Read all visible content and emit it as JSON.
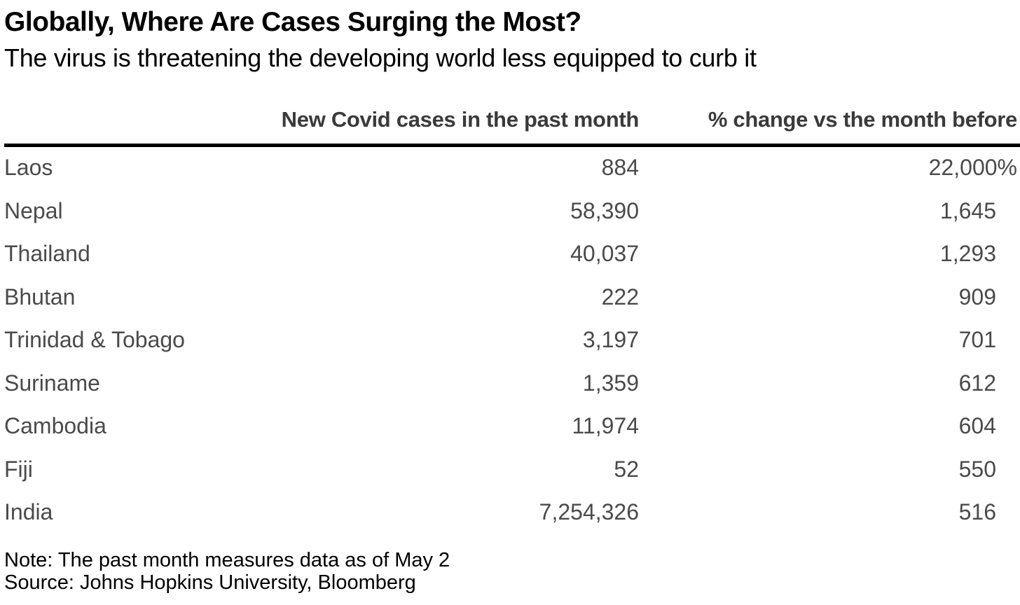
{
  "header": {
    "title": "Globally, Where Are Cases Surging the Most?",
    "subtitle": "The virus is threatening the developing world less equipped to curb it"
  },
  "footer": {
    "note": "Note: The past month measures data as of May 2",
    "source": "Source: Johns Hopkins University, Bloomberg"
  },
  "chart_data": {
    "type": "table",
    "title": "Globally, Where Are Cases Surging the Most?",
    "subtitle": "The virus is threatening the developing world less equipped to curb it",
    "columns": [
      "",
      "New Covid cases in the past month",
      "% change vs the month before"
    ],
    "rows": [
      {
        "country": "Laos",
        "cases": "884",
        "change": "22,000%"
      },
      {
        "country": "Nepal",
        "cases": "58,390",
        "change": "1,645"
      },
      {
        "country": "Thailand",
        "cases": "40,037",
        "change": "1,293"
      },
      {
        "country": "Bhutan",
        "cases": "222",
        "change": "909"
      },
      {
        "country": "Trinidad & Tobago",
        "cases": "3,197",
        "change": "701"
      },
      {
        "country": "Suriname",
        "cases": "1,359",
        "change": "612"
      },
      {
        "country": "Cambodia",
        "cases": "11,974",
        "change": "604"
      },
      {
        "country": "Fiji",
        "cases": "52",
        "change": "550"
      },
      {
        "country": "India",
        "cases": "7,254,326",
        "change": "516"
      }
    ]
  }
}
